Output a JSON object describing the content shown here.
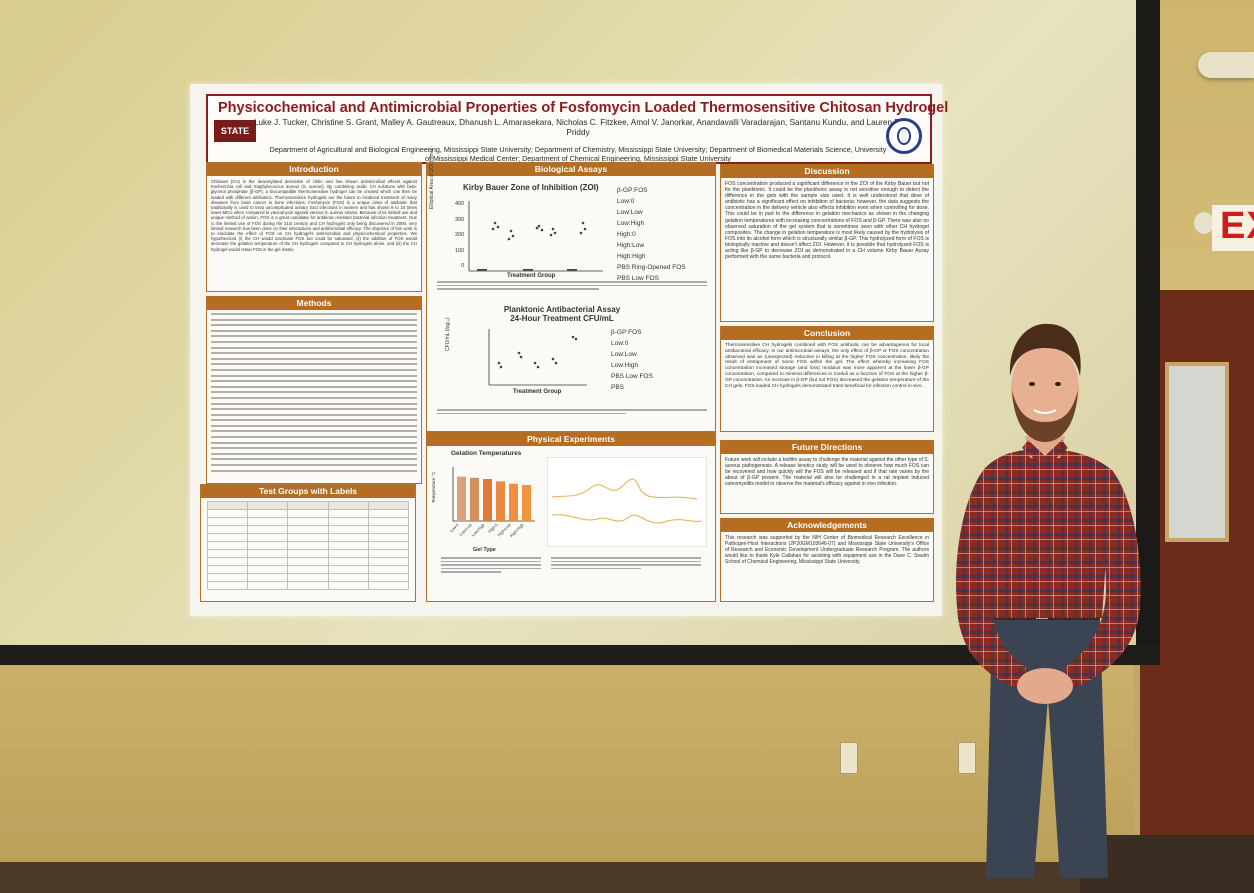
{
  "scene": {
    "exit_sign_text": "EXIT",
    "colors": {
      "wall": "#cdb56e",
      "poster_accent": "#b56d22",
      "title_red": "#8a1d1d",
      "shirt": "#7e2a25",
      "jeans": "#3b4453"
    }
  },
  "poster": {
    "title": "Physicochemical and Antimicrobial Properties of Fosfomycin Loaded Thermosensitive Chitosan Hydrogel",
    "authors": "Luke J. Tucker, Christine S. Grant, Malley A. Gautreaux, Dhanush L. Amarasekara, Nicholas C. Fitzkee, Amol V. Janorkar, Anandavalli Varadarajan, Santanu Kundu, and Lauren B. Priddy",
    "affiliation": "Department of Agricultural and Biological Engineering, Mississippi State University; Department of Chemistry, Mississippi State University; Department of Biomedical Materials Science, University of Mississippi Medical Center; Department of Chemical Engineering, Mississippi State University",
    "logo_left_text": "STATE",
    "sections": {
      "introduction": "Introduction",
      "methods": "Methods",
      "test_groups": "Test Groups with Labels",
      "biological_assays": "Biological Assays",
      "physical_experiments": "Physical Experiments",
      "discussion": "Discussion",
      "conclusion": "Conclusion",
      "future_directions": "Future Directions",
      "acknowledgements": "Acknowledgements"
    },
    "intro_text": "Chitosan (CH) is the deacetylated derivative of chitin and has shown antimicrobial effects against Escherichia coli and Staphylococcus aureus (S. aureus). By combining acidic CH solutions with beta-glycerol phosphate (β-GP), a biocompatible thermosensitive hydrogel can be created which can then be loaded with different antibiotics. Thermosensitive hydrogels are the future to localized treatment of many diseases from brain cancer to bone infections. Fosfomycin (FOS) is a unique class of antibiotic that traditionally is used to treat uncomplicated urinary tract infections in women and has shown 8 to 10 times lower MICs when compared to vancomycin against various S. aureus strains. Because of its limited use and unique method of action, FOS is a great candidate for antibiotic resistant bacterial infection treatment. Due to the limited use of FOS during the 21st century and CH hydrogels only being discovered in 2000, very limited research has been done on their interactions and antimicrobial efficacy. The objective of this work is to elucidate the effect of FOS on CH hydrogel's antimicrobial and physicochemical properties. We hypothesized (i) the CH would inactivate FOS but could be saturated, (ii) the addition of FOS would decrease the gelation temperature of the CH hydrogels compared to CH hydrogels alone, and (iii) the CH hydrogel would retain FOS in the gel matrix.",
    "zoi_chart": {
      "title": "Kirby Bauer Zone of Inhibition (ZOI)",
      "ylabel": "Elliptical Area of ZOI (mm²)",
      "xlabel": "Treatment Group",
      "yticks": [
        "0",
        "100",
        "200",
        "300",
        "400"
      ],
      "legend_title": "β-GP:FOS",
      "legend": [
        "Low:0",
        "Low:Low",
        "Low:High",
        "High:0",
        "High:Low",
        "High:High",
        "PBS Ring-Opened FOS",
        "PBS Low FOS"
      ]
    },
    "cfu_chart": {
      "title": "Planktonic Antibacterial Assay 24-Hour Treatment CFU/mL",
      "ylabel": "CFU/mL (log₁₀)",
      "xlabel": "Treatment Group",
      "legend_title": "β-GP:FOS",
      "legend": [
        "Low:0",
        "Low:Low",
        "Low:High",
        "PBS Low FOS",
        "PBS"
      ]
    },
    "gelation_chart": {
      "title": "Gelation Temperatures",
      "ylabel": "Temperature °C",
      "xlabel": "Gel Type",
      "categories": [
        "Low:0",
        "Low:Low",
        "Low:High",
        "High:0",
        "High:Low",
        "High:High"
      ],
      "values": [
        37,
        36,
        35,
        33,
        31,
        30
      ],
      "ylim": [
        0,
        45
      ]
    },
    "discussion_text": "FOS concentration produced a significant difference in the ZOI of the Kirby Bauer but not for the planktonic. It could be the planktonic assay is not sensitive enough to detect the difference in the gels with the sample size used. It is well understood that dose of antibiotic has a significant effect on inhibition of bacteria; however, the data suggests the concentration in the delivery vehicle also effects inhibition even when controlling for dose. This could be in part to the difference in gelation mechanics as shown in the changing gelation temperatures with increasing concentrations of FOS and β-GP. There was also no observed saturation of the gel system that is sometimes seen with other CH hydrogel composites. The change in gelation temperature is most likely caused by the hydrolysis of FOS into its alcohol form which is structurally similar β-GP. This hydrolyzed form of FOS is biologically inactive and doesn't affect ZOI. However, it is possible that hydrolyzed FOS is acting like β-GP to decrease ZOI as demonstrated in a CH volume Kirby Bauer Assay performed with the same bacteria and protocol.",
    "conclusion_text": "Thermosensitive CH hydrogels combined with FOS antibiotic can be advantageous for local antibacterial efficacy. In our antimicrobial assays, the only effect of β-GP or FOS concentration observed was an (unexpected) reduction in killing at the higher FOS concentration, likely the result of entrapment of some FOS within the gel. The effect whereby increasing FOS concentration increased storage (and loss) modulus was more apparent at the lower β-GP concentration, compared to minimal differences in moduli as a function of FOS at the higher β-GP concentration. An increase in β-GP (but not FOS) decreased the gelation temperature of the CH gels. FOS loaded CH hydrogels demonstrated traits beneficial for infection control in vivo.",
    "future_text": "Future work will include a biofilm assay to challenge the material against the other type of S. aureus pathogenesis. A release kinetics study will be used to observe how much FOS can be recovered and how quickly will the FOS will be released and if that rate varies by the about of β-GP present. The material will also be challenged in a rat implant induced osteomyelitis model to observe the material's efficacy against in vivo infection.",
    "ack_text": "This research was supported by the NIH Center of Biomedical Research Excellence in Pathogen-Host Interactions (2P20GM103646-07) and Mississippi State University's Office of Research and Economic Development Undergraduate Research Program. The authors would like to thank Kyle Callahan for assisting with equipment use in the Dave C. Swalm School of Chemical Engineering, Mississippi State University."
  }
}
